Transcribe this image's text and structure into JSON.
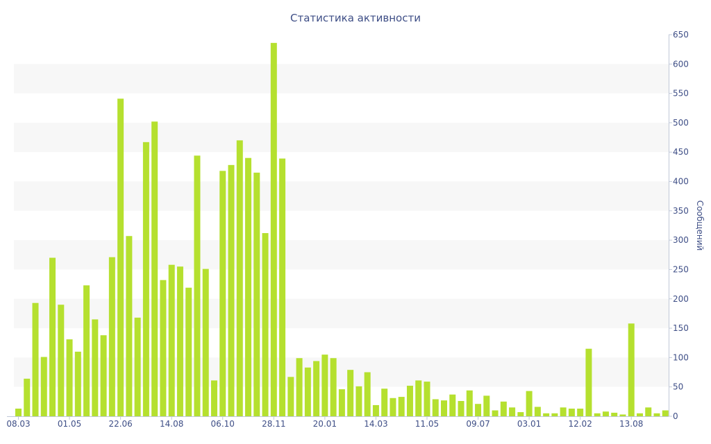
{
  "chart_data": {
    "type": "bar",
    "title": "Статистика активности",
    "xlabel": "",
    "ylabel": "Сообщений",
    "ylim": [
      0,
      650
    ],
    "y_ticks": [
      0,
      50,
      100,
      150,
      200,
      250,
      300,
      350,
      400,
      450,
      500,
      550,
      600,
      650
    ],
    "y_axis_side": "right",
    "grid": "alternating horizontal bands",
    "x_tick_labels": [
      {
        "label": "08.03",
        "index": 0
      },
      {
        "label": "01.05",
        "index": 6
      },
      {
        "label": "22.06",
        "index": 12
      },
      {
        "label": "14.08",
        "index": 18
      },
      {
        "label": "06.10",
        "index": 24
      },
      {
        "label": "28.11",
        "index": 30
      },
      {
        "label": "20.01",
        "index": 36
      },
      {
        "label": "14.03",
        "index": 42
      },
      {
        "label": "11.05",
        "index": 48
      },
      {
        "label": "09.07",
        "index": 54
      },
      {
        "label": "03.01",
        "index": 60
      },
      {
        "label": "12.02",
        "index": 66
      },
      {
        "label": "13.08",
        "index": 72
      }
    ],
    "values": [
      13,
      64,
      193,
      101,
      270,
      190,
      131,
      110,
      223,
      165,
      138,
      271,
      541,
      307,
      168,
      467,
      502,
      232,
      258,
      255,
      219,
      444,
      251,
      61,
      418,
      428,
      470,
      440,
      415,
      312,
      636,
      439,
      67,
      99,
      83,
      94,
      105,
      99,
      46,
      79,
      51,
      75,
      19,
      47,
      31,
      33,
      52,
      61,
      59,
      29,
      27,
      37,
      26,
      44,
      21,
      35,
      10,
      25,
      15,
      7,
      43,
      16,
      5,
      5,
      15,
      13,
      13,
      115,
      5,
      8,
      6,
      3,
      158,
      5,
      15,
      5,
      10
    ],
    "bar_color": "#b5e02f",
    "text_color": "#3e4e86",
    "band_color": "#f7f7f7"
  }
}
